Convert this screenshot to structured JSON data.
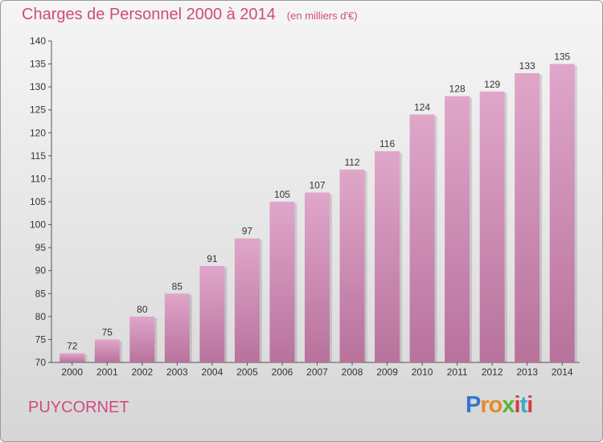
{
  "title": "Charges de Personnel 2000 à 2014",
  "title_unit": "(en milliers d'€)",
  "commune": "PUYCORNET",
  "logo": [
    "P",
    "r",
    "o",
    "x",
    "i",
    "t",
    "i"
  ],
  "colors": {
    "title": "#d14a80",
    "bar_top": "#e0a6ca",
    "bar_bottom": "#b8729c",
    "axis": "#555555"
  },
  "chart_data": {
    "type": "bar",
    "categories": [
      "2000",
      "2001",
      "2002",
      "2003",
      "2004",
      "2005",
      "2006",
      "2007",
      "2008",
      "2009",
      "2010",
      "2011",
      "2012",
      "2013",
      "2014"
    ],
    "values": [
      72,
      75,
      80,
      85,
      91,
      97,
      105,
      107,
      112,
      116,
      124,
      128,
      129,
      133,
      135
    ],
    "title": "Charges de Personnel 2000 à 2014",
    "xlabel": "",
    "ylabel": "",
    "ylim": [
      70,
      140
    ],
    "yticks": [
      70,
      75,
      80,
      85,
      90,
      95,
      100,
      105,
      110,
      115,
      120,
      125,
      130,
      135,
      140
    ],
    "grid": false,
    "data_labels": true
  }
}
